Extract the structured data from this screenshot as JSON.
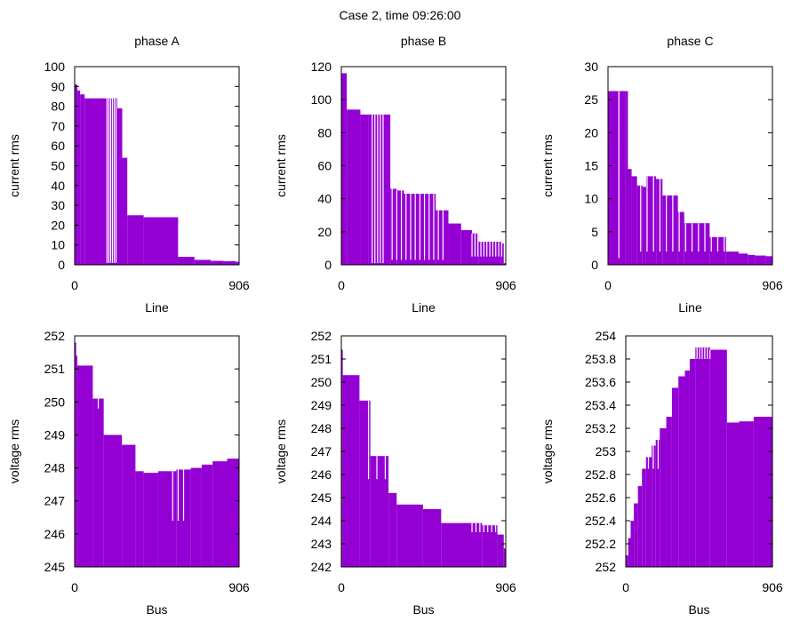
{
  "suptitle": "Case 2, time 09:26:00",
  "colors": {
    "bar": "#9400d3",
    "axis": "#000000",
    "background": "#ffffff"
  },
  "chart_data": [
    {
      "type": "bar",
      "title": "phase A",
      "xlabel": "Line",
      "ylabel": "current rms",
      "xlim": [
        0,
        906
      ],
      "ylim": [
        0,
        100
      ],
      "xticks": [
        "0",
        "906"
      ],
      "yticks": [
        "0",
        "10",
        "20",
        "30",
        "40",
        "50",
        "60",
        "70",
        "80",
        "90",
        "100"
      ],
      "steps": [
        [
          0,
          91
        ],
        [
          15,
          88
        ],
        [
          30,
          86
        ],
        [
          55,
          84
        ],
        [
          178,
          84
        ],
        [
          235,
          79
        ],
        [
          262,
          54
        ],
        [
          290,
          25
        ],
        [
          380,
          24
        ],
        [
          570,
          4
        ],
        [
          660,
          2.5
        ],
        [
          750,
          2
        ],
        [
          820,
          1.8
        ],
        [
          890,
          1.5
        ],
        [
          906,
          1.5
        ]
      ],
      "gaps": [
        [
          178,
          228,
          6,
          1
        ]
      ]
    },
    {
      "type": "bar",
      "title": "phase B",
      "xlabel": "Line",
      "ylabel": "current rms",
      "xlim": [
        0,
        906
      ],
      "ylim": [
        0,
        120
      ],
      "xticks": [
        "0",
        "906"
      ],
      "yticks": [
        "0",
        "20",
        "40",
        "60",
        "80",
        "100",
        "120"
      ],
      "steps": [
        [
          0,
          116
        ],
        [
          30,
          94
        ],
        [
          105,
          91
        ],
        [
          150,
          91
        ],
        [
          270,
          46
        ],
        [
          305,
          45
        ],
        [
          345,
          43
        ],
        [
          520,
          33
        ],
        [
          590,
          25
        ],
        [
          660,
          21
        ],
        [
          720,
          19
        ],
        [
          755,
          14
        ],
        [
          880,
          13
        ],
        [
          895,
          1
        ],
        [
          906,
          1
        ]
      ],
      "gaps": [
        [
          170,
          230,
          5,
          1
        ],
        [
          280,
          560,
          12,
          3
        ],
        [
          720,
          900,
          12,
          5
        ]
      ]
    },
    {
      "type": "bar",
      "title": "phase C",
      "xlabel": "Line",
      "ylabel": "current rms",
      "xlim": [
        0,
        906
      ],
      "ylim": [
        0,
        30
      ],
      "xticks": [
        "0",
        "906"
      ],
      "yticks": [
        "0",
        "5",
        "10",
        "15",
        "20",
        "25",
        "30"
      ],
      "steps": [
        [
          0,
          26.3
        ],
        [
          95,
          26.3
        ],
        [
          110,
          14.5
        ],
        [
          130,
          13.4
        ],
        [
          160,
          12
        ],
        [
          190,
          11.8
        ],
        [
          210,
          13.4
        ],
        [
          265,
          13
        ],
        [
          300,
          10.5
        ],
        [
          385,
          8
        ],
        [
          420,
          6.3
        ],
        [
          560,
          4.2
        ],
        [
          650,
          2
        ],
        [
          720,
          1.7
        ],
        [
          770,
          1.5
        ],
        [
          810,
          1.4
        ],
        [
          870,
          1.3
        ],
        [
          906,
          0
        ]
      ],
      "gaps": [
        [
          60,
          60,
          1,
          1
        ],
        [
          180,
          640,
          14,
          2
        ]
      ]
    },
    {
      "type": "bar",
      "title": "",
      "xlabel": "Bus",
      "ylabel": "voltage rms",
      "xlim": [
        0,
        906
      ],
      "ylim": [
        245,
        252
      ],
      "xticks": [
        "0",
        "906"
      ],
      "yticks": [
        "245",
        "246",
        "247",
        "248",
        "249",
        "250",
        "251",
        "252"
      ],
      "steps": [
        [
          0,
          251.8
        ],
        [
          8,
          251.4
        ],
        [
          15,
          251.1
        ],
        [
          100,
          250.1
        ],
        [
          160,
          249.0
        ],
        [
          260,
          248.7
        ],
        [
          335,
          247.9
        ],
        [
          380,
          247.85
        ],
        [
          460,
          247.9
        ],
        [
          560,
          247.95
        ],
        [
          640,
          248.0
        ],
        [
          700,
          248.1
        ],
        [
          760,
          248.2
        ],
        [
          840,
          248.28
        ],
        [
          906,
          248.28
        ]
      ],
      "gaps": [
        [
          130,
          340,
          6,
          249.8
        ],
        [
          540,
          600,
          3,
          246.4
        ]
      ]
    },
    {
      "type": "bar",
      "title": "",
      "xlabel": "Bus",
      "ylabel": "voltage rms",
      "xlim": [
        0,
        906
      ],
      "ylim": [
        242,
        252
      ],
      "xticks": [
        "0",
        "906"
      ],
      "yticks": [
        "242",
        "243",
        "244",
        "245",
        "246",
        "247",
        "248",
        "249",
        "250",
        "251",
        "252"
      ],
      "steps": [
        [
          0,
          251.4
        ],
        [
          8,
          250.3
        ],
        [
          100,
          249.2
        ],
        [
          160,
          246.8
        ],
        [
          260,
          245.2
        ],
        [
          305,
          244.7
        ],
        [
          450,
          244.5
        ],
        [
          550,
          243.9
        ],
        [
          720,
          243.9
        ],
        [
          775,
          243.8
        ],
        [
          860,
          243.4
        ],
        [
          895,
          242.8
        ],
        [
          906,
          242.8
        ]
      ],
      "gaps": [
        [
          150,
          380,
          6,
          245.8
        ],
        [
          720,
          850,
          7,
          243.5
        ]
      ]
    },
    {
      "type": "bar",
      "title": "",
      "xlabel": "Bus",
      "ylabel": "voltage rms",
      "xlim": [
        0,
        906
      ],
      "ylim": [
        252,
        254
      ],
      "xticks": [
        "0",
        "906"
      ],
      "yticks": [
        "252",
        "252.2",
        "252.4",
        "252.6",
        "252.8",
        "253",
        "253.2",
        "253.4",
        "253.6",
        "253.8",
        "254"
      ],
      "steps": [
        [
          0,
          252.1
        ],
        [
          15,
          252.25
        ],
        [
          30,
          252.4
        ],
        [
          50,
          252.55
        ],
        [
          75,
          252.7
        ],
        [
          100,
          252.85
        ],
        [
          125,
          252.95
        ],
        [
          160,
          253.05
        ],
        [
          185,
          253.1
        ],
        [
          210,
          253.2
        ],
        [
          250,
          253.3
        ],
        [
          285,
          253.55
        ],
        [
          325,
          253.65
        ],
        [
          365,
          253.7
        ],
        [
          395,
          253.8
        ],
        [
          430,
          253.9
        ],
        [
          520,
          253.88
        ],
        [
          615,
          253.88
        ],
        [
          625,
          253.25
        ],
        [
          700,
          253.26
        ],
        [
          790,
          253.3
        ],
        [
          906,
          253.3
        ]
      ],
      "gaps": [
        [
          140,
          200,
          3,
          252.85
        ],
        [
          440,
          520,
          6,
          253.8
        ]
      ]
    }
  ]
}
